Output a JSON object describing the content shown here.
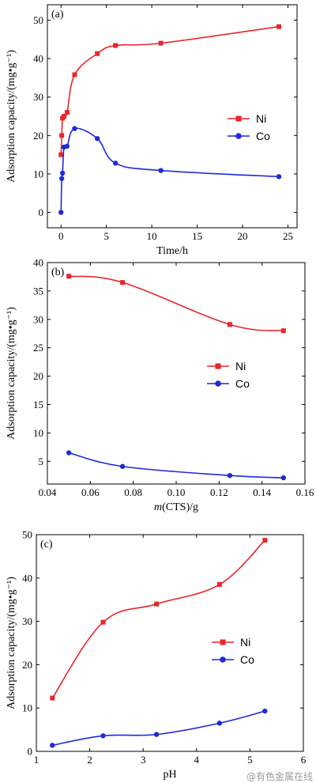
{
  "chart_data": [
    {
      "type": "line",
      "panel_label": "(a)",
      "xlabel": "Time/h",
      "ylabel": "Adsorption capacity/(mg•g⁻¹)",
      "xlim": [
        -1.5,
        26
      ],
      "ylim": [
        -4,
        54
      ],
      "xticks": [
        0,
        5,
        10,
        15,
        20,
        25
      ],
      "yticks": [
        0,
        10,
        20,
        30,
        40,
        50
      ],
      "legend_position": "right-middle",
      "series": [
        {
          "name": "Ni",
          "color": "#e8262b",
          "marker": "square",
          "x": [
            0,
            0.083,
            0.167,
            0.333,
            0.667,
            1.5,
            4,
            6,
            11,
            24
          ],
          "y": [
            15,
            20,
            24.5,
            25,
            26,
            35.8,
            41.3,
            43.4,
            44,
            48.3
          ]
        },
        {
          "name": "Co",
          "color": "#1f2ad8",
          "marker": "circle",
          "x": [
            0,
            0.083,
            0.167,
            0.333,
            0.667,
            1.5,
            4,
            6,
            11,
            24
          ],
          "y": [
            0,
            8.8,
            10.2,
            17,
            17.2,
            21.8,
            19.2,
            12.8,
            10.9,
            9.3
          ]
        }
      ]
    },
    {
      "type": "line",
      "panel_label": "(b)",
      "xlabel": "m(CTS)/g",
      "ylabel": "Adsorption capacity/(mg•g⁻¹)",
      "xlim": [
        0.04,
        0.16
      ],
      "ylim": [
        1,
        40
      ],
      "xticks": [
        0.04,
        0.06,
        0.08,
        0.1,
        0.12,
        0.14,
        0.16
      ],
      "yticks": [
        5,
        10,
        15,
        20,
        25,
        30,
        35,
        40
      ],
      "legend_position": "right-middle",
      "series": [
        {
          "name": "Ni",
          "color": "#e8262b",
          "marker": "square",
          "x": [
            0.05,
            0.075,
            0.125,
            0.15
          ],
          "y": [
            37.6,
            36.5,
            29.1,
            28
          ]
        },
        {
          "name": "Co",
          "color": "#1f2ad8",
          "marker": "circle",
          "x": [
            0.05,
            0.075,
            0.125,
            0.15
          ],
          "y": [
            6.5,
            4.1,
            2.5,
            2.1
          ]
        }
      ]
    },
    {
      "type": "line",
      "panel_label": "(c)",
      "xlabel": "pH",
      "ylabel": "Adsorption capacity/(mg•g⁻¹)",
      "xlim": [
        1,
        6
      ],
      "ylim": [
        0,
        50
      ],
      "xticks": [
        1,
        2,
        3,
        4,
        5,
        6
      ],
      "yticks": [
        0,
        10,
        20,
        30,
        40,
        50
      ],
      "legend_position": "center",
      "series": [
        {
          "name": "Ni",
          "color": "#e8262b",
          "marker": "square",
          "x": [
            1.3,
            2.25,
            3.25,
            4.43,
            5.28
          ],
          "y": [
            12.3,
            29.8,
            34,
            38.5,
            48.7
          ]
        },
        {
          "name": "Co",
          "color": "#1f2ad8",
          "marker": "circle",
          "x": [
            1.3,
            2.25,
            3.25,
            4.43,
            5.28
          ],
          "y": [
            1.4,
            3.6,
            3.9,
            6.5,
            9.3
          ]
        }
      ]
    }
  ],
  "watermark": "@有色金属在线"
}
